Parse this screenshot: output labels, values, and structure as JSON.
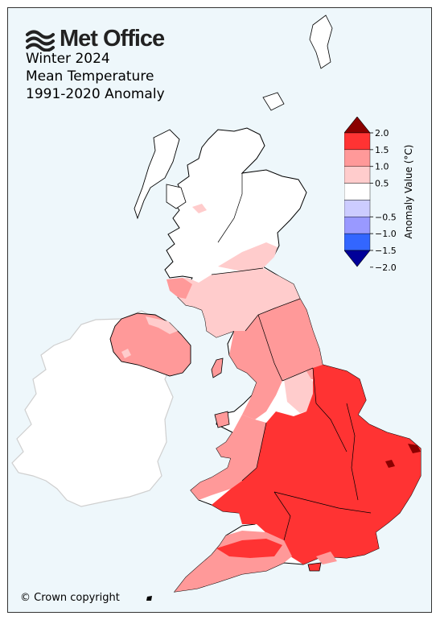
{
  "brand": {
    "logo_text": "Met Office",
    "logo_icon": "met-office-wave-icon"
  },
  "title": {
    "line1": "Winter 2024",
    "line2": "Mean Temperature",
    "line3": "1991-2020 Anomaly"
  },
  "legend": {
    "label": "Anomaly Value (°C)",
    "ticks": [
      "2.0",
      "1.5",
      "1.0",
      "0.5",
      "−0.5",
      "−1.0",
      "−1.5",
      "−2.0"
    ],
    "bins": [
      {
        "range": "> 2.0",
        "color": "#8b0000"
      },
      {
        "range": "1.5 to 2.0",
        "color": "#ff3333"
      },
      {
        "range": "1.0 to 1.5",
        "color": "#ff9999"
      },
      {
        "range": "0.5 to 1.0",
        "color": "#ffcccc"
      },
      {
        "range": "-0.5 to 0.5",
        "color": "#ffffff"
      },
      {
        "range": "-1.0 to -0.5",
        "color": "#ccccff"
      },
      {
        "range": "-1.5 to -1.0",
        "color": "#9999ff"
      },
      {
        "range": "-2.0 to -1.5",
        "color": "#3366ff"
      },
      {
        "range": "< -2.0",
        "color": "#000099"
      }
    ]
  },
  "copyright": "© Crown copyright",
  "colors": {
    "sea": "#eef7fb",
    "ireland_fill": "#ffffff",
    "ireland_stroke": "#cfcfcf",
    "border": "#000000"
  }
}
